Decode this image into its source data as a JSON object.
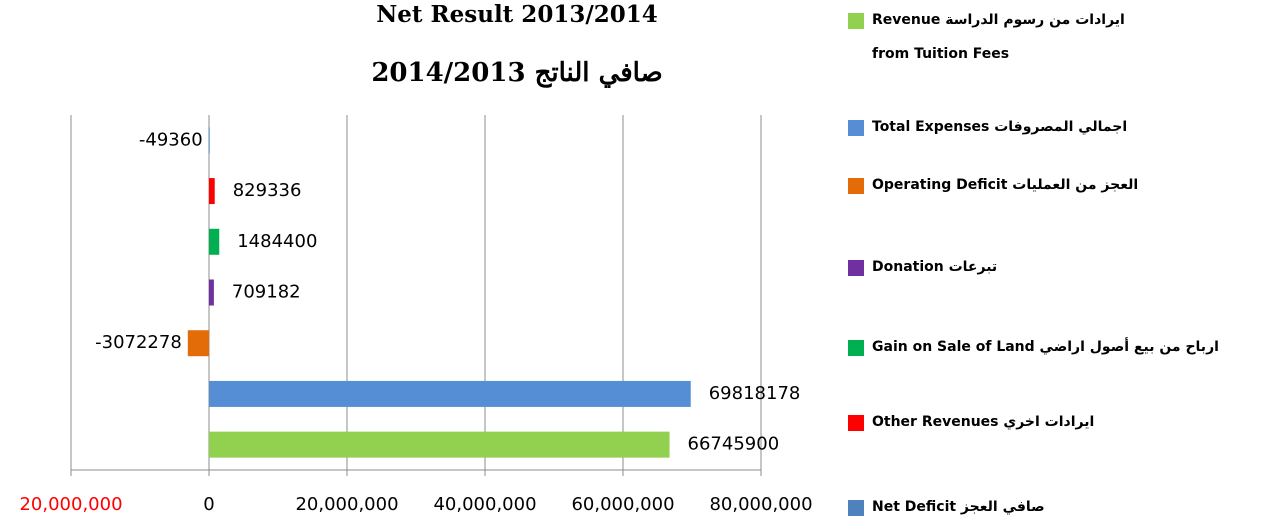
{
  "chart_data": {
    "type": "bar",
    "orientation": "horizontal",
    "title": "Net Result 2013/2014",
    "subtitle": "صافي الناتج 2014/2013",
    "categories": [
      "ايرادات من رسوم الدراسة Revenue from Tuition Fees",
      "اجمالي المصروفات Total Expenses",
      "العجز من العمليات Operating Deficit",
      "تبرعات Donation",
      "ارباح من بيع أصول اراضي Gain on Sale of Land",
      "ايرادات اخري Other Revenues",
      "صافي العجز Net Deficit"
    ],
    "values": [
      66745900,
      69818178,
      -3072278,
      709182,
      1484400,
      829336,
      -49360
    ],
    "colors": [
      "#92d050",
      "#558ed5",
      "#e36c09",
      "#7030a0",
      "#00b050",
      "#ff0000",
      "#4f81bd"
    ],
    "xlim": [
      -20000000,
      80000000
    ],
    "xticks": [
      {
        "value": -20000000,
        "label": "20,000,000"
      },
      0,
      {
        "value": 20000000,
        "label": "20,000,000"
      },
      {
        "value": 40000000,
        "label": "40,000,000"
      },
      {
        "value": 60000000,
        "label": "60,000,000"
      },
      {
        "value": 80000000,
        "label": "80,000,000"
      }
    ],
    "xtick_label_colors": [
      "#ff0000",
      "#000000",
      "#000000",
      "#000000",
      "#000000",
      "#000000"
    ],
    "grid": true,
    "legend": "right"
  }
}
